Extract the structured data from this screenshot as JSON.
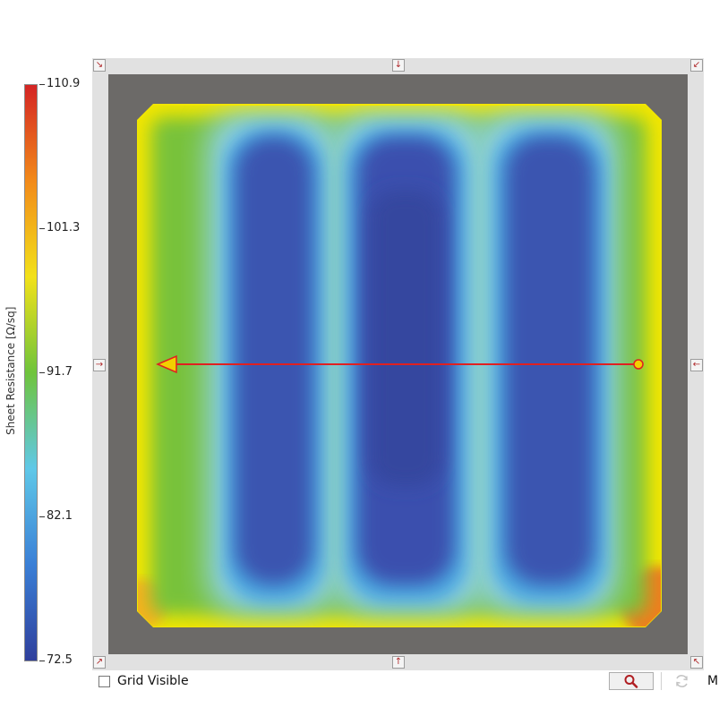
{
  "chart_data": {
    "type": "heatmap",
    "colorbar": {
      "title": "Sheet Resistance [Ω/sq]",
      "min": 72.5,
      "max": 110.9,
      "ticks": [
        "110.9",
        "101.3",
        "91.7",
        "82.1",
        "72.5"
      ],
      "colors": [
        "#d42424",
        "#f28a1a",
        "#f2e11a",
        "#6fc43c",
        "#5fc8e8",
        "#3a7fd6",
        "#2f3f9c"
      ]
    },
    "map": {
      "description_colors": {
        "edge": "#f2e600",
        "background_field": "#78c23a",
        "transition": "#8fd2e6",
        "low_band": "#3a55b0",
        "background": "#6c6a68"
      },
      "low_resistance_bands": 3,
      "line_scan": {
        "color": "#e02020",
        "marker_color": "#f2d000"
      }
    }
  },
  "controls": {
    "grid_visible_label": "Grid Visible",
    "grid_visible_checked": false,
    "cut_label": "M",
    "zoom_icon": "magnifier-icon",
    "refresh_icon": "refresh-icon"
  },
  "nav": {
    "top_left": "↘",
    "top_center": "↓",
    "top_right": "↙",
    "mid_left": "→",
    "mid_right": "←",
    "bottom_left": "↗",
    "bottom_center": "↑",
    "bottom_right": "↖"
  }
}
